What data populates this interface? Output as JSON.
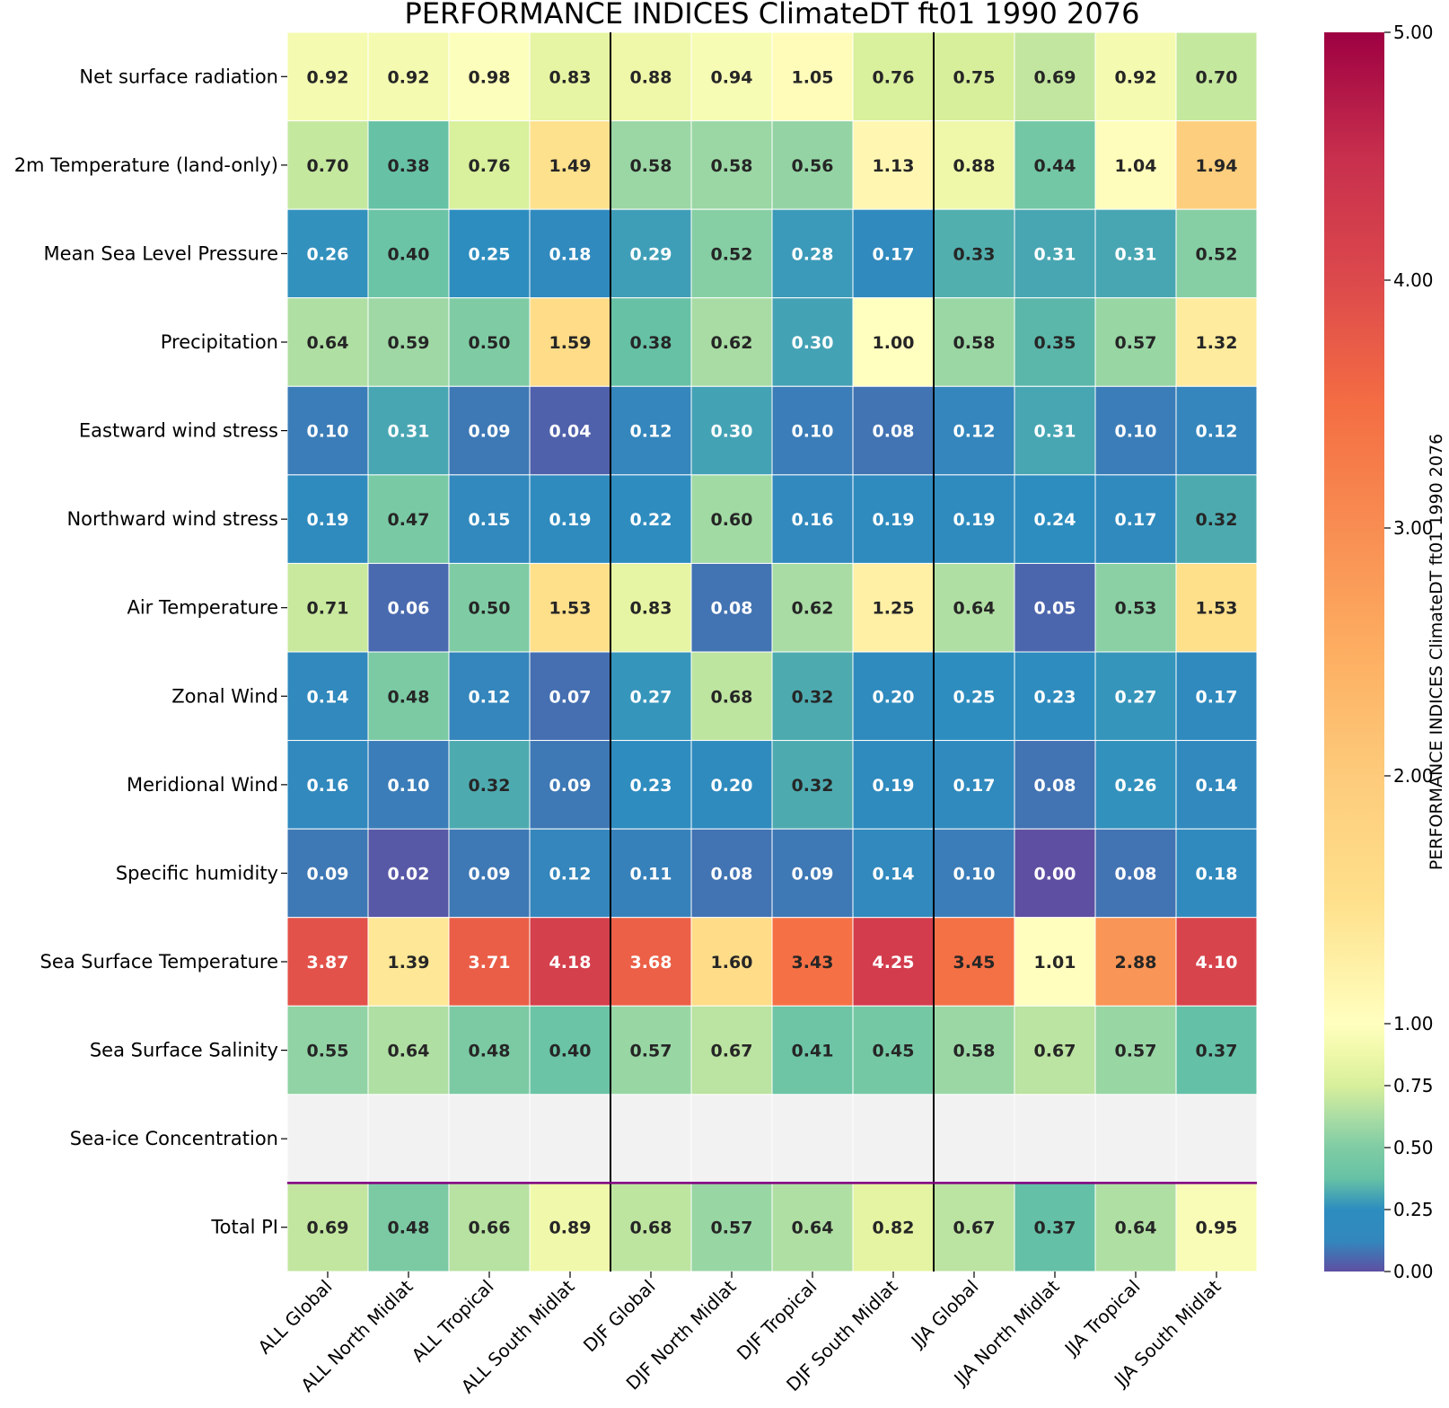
{
  "chart_data": {
    "type": "heatmap",
    "title": "PERFORMANCE INDICES ClimateDT ft01 1990 2076",
    "columns": [
      "ALL Global",
      "ALL North Midlat",
      "ALL Tropical",
      "ALL South Midlat",
      "DJF Global",
      "DJF North Midlat",
      "DJF Tropical",
      "DJF South Midlat",
      "JJA Global",
      "JJA North Midlat",
      "JJA Tropical",
      "JJA South Midlat"
    ],
    "rows": [
      "Net surface radiation",
      "2m Temperature (land-only)",
      "Mean Sea Level Pressure",
      "Precipitation",
      "Eastward wind stress",
      "Northward wind stress",
      "Air Temperature",
      "Zonal Wind",
      "Meridional Wind",
      "Specific humidity",
      "Sea Surface Temperature",
      "Sea Surface Salinity",
      "Sea-ice Concentration",
      "Total PI"
    ],
    "values": [
      [
        0.92,
        0.92,
        0.98,
        0.83,
        0.88,
        0.94,
        1.05,
        0.76,
        0.75,
        0.69,
        0.92,
        0.7
      ],
      [
        0.7,
        0.38,
        0.76,
        1.49,
        0.58,
        0.58,
        0.56,
        1.13,
        0.88,
        0.44,
        1.04,
        1.94
      ],
      [
        0.26,
        0.4,
        0.25,
        0.18,
        0.29,
        0.52,
        0.28,
        0.17,
        0.33,
        0.31,
        0.31,
        0.52
      ],
      [
        0.64,
        0.59,
        0.5,
        1.59,
        0.38,
        0.62,
        0.3,
        1.0,
        0.58,
        0.35,
        0.57,
        1.32
      ],
      [
        0.1,
        0.31,
        0.09,
        0.04,
        0.12,
        0.3,
        0.1,
        0.08,
        0.12,
        0.31,
        0.1,
        0.12
      ],
      [
        0.19,
        0.47,
        0.15,
        0.19,
        0.22,
        0.6,
        0.16,
        0.19,
        0.19,
        0.24,
        0.17,
        0.32
      ],
      [
        0.71,
        0.06,
        0.5,
        1.53,
        0.83,
        0.08,
        0.62,
        1.25,
        0.64,
        0.05,
        0.53,
        1.53
      ],
      [
        0.14,
        0.48,
        0.12,
        0.07,
        0.27,
        0.68,
        0.32,
        0.2,
        0.25,
        0.23,
        0.27,
        0.17
      ],
      [
        0.16,
        0.1,
        0.32,
        0.09,
        0.23,
        0.2,
        0.32,
        0.19,
        0.17,
        0.08,
        0.26,
        0.14
      ],
      [
        0.09,
        0.02,
        0.09,
        0.12,
        0.11,
        0.08,
        0.09,
        0.14,
        0.1,
        0.0,
        0.08,
        0.18
      ],
      [
        3.87,
        1.39,
        3.71,
        4.18,
        3.68,
        1.6,
        3.43,
        4.25,
        3.45,
        1.01,
        2.88,
        4.1
      ],
      [
        0.55,
        0.64,
        0.48,
        0.4,
        0.57,
        0.67,
        0.41,
        0.45,
        0.58,
        0.67,
        0.57,
        0.37
      ],
      [
        null,
        null,
        null,
        null,
        null,
        null,
        null,
        null,
        null,
        null,
        null,
        null
      ],
      [
        0.69,
        0.48,
        0.66,
        0.89,
        0.68,
        0.57,
        0.64,
        0.82,
        0.67,
        0.37,
        0.64,
        0.95
      ]
    ],
    "missing_color": "#f2f2f2",
    "separator_color": "#000000",
    "total_separator_color": "#800080",
    "colorbar": {
      "label": "PERFORMANCE INDICES ClimateDT ft01 1990 2076",
      "ticks": [
        0.0,
        0.25,
        0.5,
        0.75,
        1.0,
        2.0,
        3.0,
        4.0,
        5.0
      ],
      "tick_labels": [
        "0.00",
        "0.25",
        "0.50",
        "0.75",
        "1.00",
        "2.00",
        "3.00",
        "4.00",
        "5.00"
      ],
      "range": [
        0,
        5
      ],
      "colormap": "Spectral_r",
      "colormap_stops": [
        {
          "value": 0.0,
          "color": "#5e4fa2"
        },
        {
          "value": 0.125,
          "color": "#3288bd"
        },
        {
          "value": 0.25,
          "color": "#2d8dbf"
        },
        {
          "value": 0.375,
          "color": "#66c2a5"
        },
        {
          "value": 0.5,
          "color": "#7fcca4"
        },
        {
          "value": 0.625,
          "color": "#abdda4"
        },
        {
          "value": 0.75,
          "color": "#d7ef9b"
        },
        {
          "value": 0.875,
          "color": "#eef8a8"
        },
        {
          "value": 1.0,
          "color": "#ffffbf"
        },
        {
          "value": 1.5,
          "color": "#fee08b"
        },
        {
          "value": 2.0,
          "color": "#fdcb7b"
        },
        {
          "value": 2.5,
          "color": "#fdae61"
        },
        {
          "value": 3.0,
          "color": "#f88d52"
        },
        {
          "value": 3.5,
          "color": "#f46d43"
        },
        {
          "value": 4.0,
          "color": "#dc494c"
        },
        {
          "value": 4.5,
          "color": "#c72f4d"
        },
        {
          "value": 5.0,
          "color": "#9e0142"
        }
      ]
    }
  }
}
